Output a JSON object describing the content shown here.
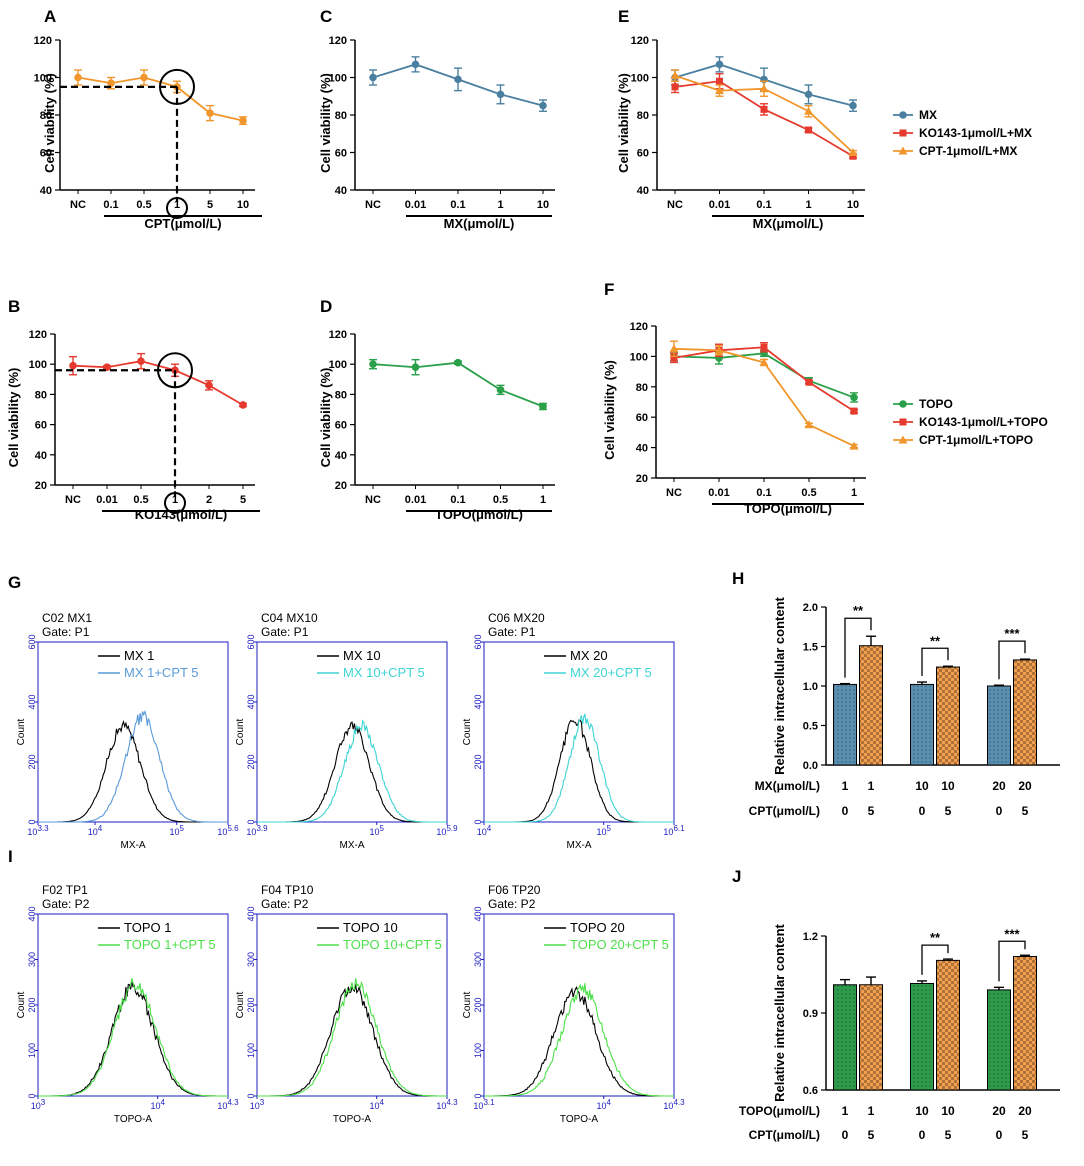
{
  "colors": {
    "orange": "#f0962c",
    "blue": "#4a7fa0",
    "red": "#e63a2e",
    "green": "#2aa04a",
    "flow_axis": "#1c1cc0",
    "mx_sky": "#5a9ad8",
    "mx_cyan": "#3fd4d4",
    "topo_green": "#4ee04a",
    "bar_blue": "#5b8fb0",
    "bar_green": "#2e9b48",
    "bar_orange": "#f0a050"
  },
  "chart_data": [
    {
      "id": "A",
      "type": "line",
      "panel_label": "A",
      "ylabel": "Cell viability (%)",
      "xlabel": "CPT(μmol/L)",
      "ylim": [
        40,
        120
      ],
      "yticks": [
        40,
        60,
        80,
        100,
        120
      ],
      "categories": [
        "NC",
        "0.1",
        "0.5",
        "1",
        "5",
        "10"
      ],
      "series": [
        {
          "name": "CPT",
          "color": "#f0962c",
          "marker": "circle",
          "values": [
            100,
            97,
            100,
            95,
            81,
            77
          ],
          "errors": [
            4,
            3,
            4,
            3,
            4,
            2
          ]
        }
      ],
      "annotation": {
        "type": "ic10",
        "category_index": 3,
        "value": 95
      }
    },
    {
      "id": "B",
      "type": "line",
      "panel_label": "B",
      "ylabel": "Cell viability (%)",
      "xlabel": "KO143(μmol/L)",
      "ylim": [
        20,
        120
      ],
      "yticks": [
        20,
        40,
        60,
        80,
        100,
        120
      ],
      "categories": [
        "NC",
        "0.01",
        "0.5",
        "1",
        "2",
        "5"
      ],
      "series": [
        {
          "name": "KO143",
          "color": "#e63a2e",
          "marker": "circle",
          "values": [
            99,
            98,
            102,
            96,
            86,
            73
          ],
          "errors": [
            6,
            1,
            5,
            4,
            3,
            1
          ]
        }
      ],
      "annotation": {
        "type": "ic10",
        "category_index": 3,
        "value": 96
      }
    },
    {
      "id": "C",
      "type": "line",
      "panel_label": "C",
      "ylabel": "Cell viability (%)",
      "xlabel": "MX(μmol/L)",
      "ylim": [
        40,
        120
      ],
      "yticks": [
        40,
        60,
        80,
        100,
        120
      ],
      "categories": [
        "NC",
        "0.01",
        "0.1",
        "1",
        "10"
      ],
      "series": [
        {
          "name": "MX",
          "color": "#4a7fa0",
          "marker": "circle",
          "values": [
            100,
            107,
            99,
            91,
            85
          ],
          "errors": [
            4,
            4,
            6,
            5,
            3
          ]
        }
      ]
    },
    {
      "id": "D",
      "type": "line",
      "panel_label": "D",
      "ylabel": "Cell viability (%)",
      "xlabel": "TOPO(μmol/L)",
      "ylim": [
        20,
        120
      ],
      "yticks": [
        20,
        40,
        60,
        80,
        100,
        120
      ],
      "categories": [
        "NC",
        "0.01",
        "0.1",
        "0.5",
        "1"
      ],
      "series": [
        {
          "name": "TOPO",
          "color": "#2aa04a",
          "marker": "circle",
          "values": [
            100,
            98,
            101,
            83,
            72
          ],
          "errors": [
            3,
            5,
            1,
            3,
            2
          ]
        }
      ]
    },
    {
      "id": "E",
      "type": "line",
      "panel_label": "E",
      "ylabel": "Cell viability (%)",
      "xlabel": "MX(μmol/L)",
      "ylim": [
        40,
        120
      ],
      "yticks": [
        40,
        60,
        80,
        100,
        120
      ],
      "categories": [
        "NC",
        "0.01",
        "0.1",
        "1",
        "10"
      ],
      "series": [
        {
          "name": "MX",
          "color": "#4a7fa0",
          "marker": "circle",
          "values": [
            100,
            107,
            99,
            91,
            85
          ],
          "errors": [
            4,
            4,
            6,
            5,
            3
          ]
        },
        {
          "name": "KO143-1μmol/L+MX",
          "color": "#e63a2e",
          "marker": "square",
          "values": [
            95,
            98,
            83,
            72,
            58
          ],
          "errors": [
            3,
            4,
            3,
            1,
            1
          ]
        },
        {
          "name": "CPT-1μmol/L+MX",
          "color": "#f0962c",
          "marker": "triangle",
          "values": [
            101,
            93,
            94,
            82,
            60
          ],
          "errors": [
            3,
            3,
            4,
            3,
            1
          ]
        }
      ],
      "legend": [
        "MX",
        "KO143-1μmol/L+MX",
        "CPT-1μmol/L+MX"
      ]
    },
    {
      "id": "F",
      "type": "line",
      "panel_label": "F",
      "ylabel": "Cell viability (%)",
      "xlabel": "TOPO(μmol/L)",
      "ylim": [
        20,
        120
      ],
      "yticks": [
        20,
        40,
        60,
        80,
        100,
        120
      ],
      "categories": [
        "NC",
        "0.01",
        "0.1",
        "0.5",
        "1"
      ],
      "series": [
        {
          "name": "TOPO",
          "color": "#2aa04a",
          "marker": "circle",
          "values": [
            100,
            99,
            102,
            84,
            73
          ],
          "errors": [
            3,
            4,
            2,
            2,
            3
          ]
        },
        {
          "name": "KO143-1μmol/L+TOPO",
          "color": "#e63a2e",
          "marker": "square",
          "values": [
            99,
            104,
            106,
            83,
            64
          ],
          "errors": [
            3,
            4,
            3,
            1,
            1
          ]
        },
        {
          "name": "CPT-1μmol/L+TOPO",
          "color": "#f0962c",
          "marker": "triangle",
          "values": [
            105,
            104,
            96,
            55,
            41
          ],
          "errors": [
            5,
            3,
            2,
            1,
            1
          ]
        }
      ],
      "legend": [
        "TOPO",
        "KO143-1μmol/L+TOPO",
        "CPT-1μmol/L+TOPO"
      ]
    },
    {
      "id": "H",
      "type": "bar",
      "panel_label": "H",
      "ylabel": "Relative intracellular content",
      "ylim": [
        0,
        2.0
      ],
      "yticks": [
        "0.0",
        "0.5",
        "1.0",
        "1.5",
        "2.0"
      ],
      "groups": [
        {
          "values": [
            1.02,
            1.51
          ],
          "errors": [
            0.01,
            0.12
          ],
          "significance": "**",
          "row1": [
            "1",
            "1"
          ],
          "row2": [
            "0",
            "5"
          ]
        },
        {
          "values": [
            1.02,
            1.24
          ],
          "errors": [
            0.03,
            0.01
          ],
          "significance": "**",
          "row1": [
            "10",
            "10"
          ],
          "row2": [
            "0",
            "5"
          ]
        },
        {
          "values": [
            1.0,
            1.33
          ],
          "errors": [
            0.01,
            0.01
          ],
          "significance": "***",
          "row1": [
            "20",
            "20"
          ],
          "row2": [
            "0",
            "5"
          ]
        }
      ],
      "row_labels": [
        "MX(μmol/L)",
        "CPT(μmol/L)"
      ],
      "colors": [
        "#5b8fb0",
        "#f0a050"
      ]
    },
    {
      "id": "J",
      "type": "bar",
      "panel_label": "J",
      "ylabel": "Relative intracellular content",
      "ylim": [
        0.6,
        1.2
      ],
      "yticks": [
        "0.6",
        "0.9",
        "1.2"
      ],
      "groups": [
        {
          "values": [
            1.01,
            1.01
          ],
          "errors": [
            0.02,
            0.03
          ],
          "significance": "",
          "row1": [
            "1",
            "1"
          ],
          "row2": [
            "0",
            "5"
          ]
        },
        {
          "values": [
            1.015,
            1.105
          ],
          "errors": [
            0.01,
            0.005
          ],
          "significance": "**",
          "row1": [
            "10",
            "10"
          ],
          "row2": [
            "0",
            "5"
          ]
        },
        {
          "values": [
            0.99,
            1.12
          ],
          "errors": [
            0.01,
            0.005
          ],
          "significance": "***",
          "row1": [
            "20",
            "20"
          ],
          "row2": [
            "0",
            "5"
          ]
        }
      ],
      "row_labels": [
        "TOPO(μmol/L)",
        "CPT(μmol/L)"
      ],
      "colors": [
        "#2e9b48",
        "#f0a050"
      ]
    }
  ],
  "flow_panels": [
    {
      "panel_label": "G",
      "plots": [
        {
          "head1": "C02 MX1",
          "head2": "Gate: P1",
          "legend": [
            "MX 1",
            "MX 1+CPT 5"
          ],
          "colors": [
            "#000000",
            "#5a9ad8"
          ],
          "xticks": [
            "10^3.3",
            "10^4",
            "10^5",
            "10^5.6"
          ],
          "xaxis": "MX-A",
          "peaks": [
            0.45,
            0.55
          ],
          "peak_heights": [
            320,
            350
          ],
          "width": 0.09
        },
        {
          "head1": "C04 MX10",
          "head2": "Gate: P1",
          "legend": [
            "MX 10",
            "MX 10+CPT 5"
          ],
          "colors": [
            "#000000",
            "#3fd4d4"
          ],
          "xticks": [
            "10^3.9",
            "10^5",
            "10^5.9"
          ],
          "xaxis": "MX-A",
          "peaks": [
            0.5,
            0.55
          ],
          "peak_heights": [
            320,
            320
          ],
          "width": 0.09
        },
        {
          "head1": "C06 MX20",
          "head2": "Gate: P1",
          "legend": [
            "MX 20",
            "MX 20+CPT 5"
          ],
          "colors": [
            "#000000",
            "#3fd4d4"
          ],
          "xticks": [
            "10^4",
            "10^5",
            "10^6.1"
          ],
          "xaxis": "MX-A",
          "peaks": [
            0.48,
            0.53
          ],
          "peak_heights": [
            340,
            345
          ],
          "width": 0.08
        }
      ],
      "yticks": [
        "0",
        "200",
        "400",
        "600"
      ],
      "ylabel": "Count"
    },
    {
      "panel_label": "I",
      "plots": [
        {
          "head1": "F02 TP1",
          "head2": "Gate: P2",
          "legend": [
            "TOPO 1",
            "TOPO 1+CPT 5"
          ],
          "colors": [
            "#000000",
            "#4ee04a"
          ],
          "xticks": [
            "10^3",
            "10^4",
            "10^4.3"
          ],
          "xaxis": "TOPO-A",
          "peaks": [
            0.5,
            0.51
          ],
          "peak_heights": [
            240,
            245
          ],
          "width": 0.11
        },
        {
          "head1": "F04 TP10",
          "head2": "Gate: P2",
          "legend": [
            "TOPO 10",
            "TOPO 10+CPT 5"
          ],
          "colors": [
            "#000000",
            "#4ee04a"
          ],
          "xticks": [
            "10^3",
            "10^4",
            "10^4.3"
          ],
          "xaxis": "TOPO-A",
          "peaks": [
            0.5,
            0.52
          ],
          "peak_heights": [
            240,
            245
          ],
          "width": 0.11
        },
        {
          "head1": "F06 TP20",
          "head2": "Gate: P2",
          "legend": [
            "TOPO 20",
            "TOPO 20+CPT 5"
          ],
          "colors": [
            "#000000",
            "#4ee04a"
          ],
          "xticks": [
            "10^3.1",
            "10^4",
            "10^4.3"
          ],
          "xaxis": "TOPO-A",
          "peaks": [
            0.48,
            0.52
          ],
          "peak_heights": [
            230,
            235
          ],
          "width": 0.11
        }
      ],
      "yticks": [
        "0",
        "100",
        "200",
        "300",
        "400"
      ],
      "ylabel": "Count"
    }
  ]
}
